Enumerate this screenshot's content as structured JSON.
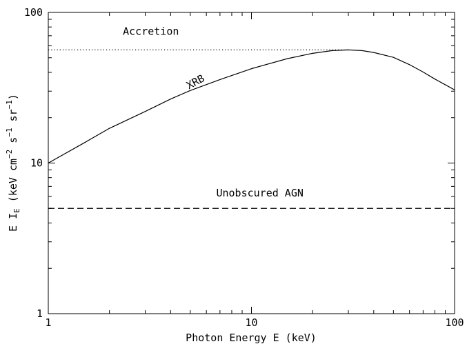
{
  "chart_data": {
    "type": "line",
    "xscale": "log",
    "yscale": "log",
    "xlim": [
      1,
      100
    ],
    "ylim": [
      1,
      100
    ],
    "xlabel": "Photon Energy E (keV)",
    "ylabel": {
      "prefix": "E I",
      "prefix_sub": "E",
      "paren_open": " (keV cm",
      "exp1": "−2",
      "mid1": " s",
      "exp2": "−1",
      "mid2": " sr",
      "exp3": "−1",
      "paren_close": ")"
    },
    "x_tick_labels": [
      {
        "value": 1,
        "label": "1"
      },
      {
        "value": 10,
        "label": "10"
      },
      {
        "value": 100,
        "label": "100"
      }
    ],
    "y_tick_labels": [
      {
        "value": 1,
        "label": "1"
      },
      {
        "value": 10,
        "label": "10"
      },
      {
        "value": 100,
        "label": "100"
      }
    ],
    "series": [
      {
        "name": "XRB",
        "style": "solid",
        "x": [
          1,
          1.5,
          2,
          3,
          4,
          5,
          7,
          10,
          15,
          20,
          25,
          30,
          35,
          40,
          50,
          60,
          70,
          80,
          90,
          100
        ],
        "y": [
          10,
          13.6,
          17,
          22,
          26.6,
          30.3,
          35.8,
          42.3,
          49.3,
          53.5,
          55.8,
          56.4,
          55.8,
          54.2,
          50.3,
          45,
          40.2,
          36.1,
          33.1,
          30.6
        ]
      },
      {
        "name": "Accretion",
        "style": "dotted",
        "x": [
          1,
          30
        ],
        "y": [
          56.4,
          56.4
        ]
      },
      {
        "name": "Unobscured AGN",
        "style": "dashed",
        "x": [
          1,
          100
        ],
        "y": [
          5,
          5
        ]
      }
    ],
    "annotations": [
      {
        "text": "Accretion",
        "x": 3.2,
        "y": 71,
        "rotate": 0
      },
      {
        "text": "XRB",
        "x": 5.4,
        "y": 33,
        "rotate": -28
      },
      {
        "text": "Unobscured AGN",
        "x": 11,
        "y": 6.0,
        "rotate": 0
      }
    ]
  }
}
